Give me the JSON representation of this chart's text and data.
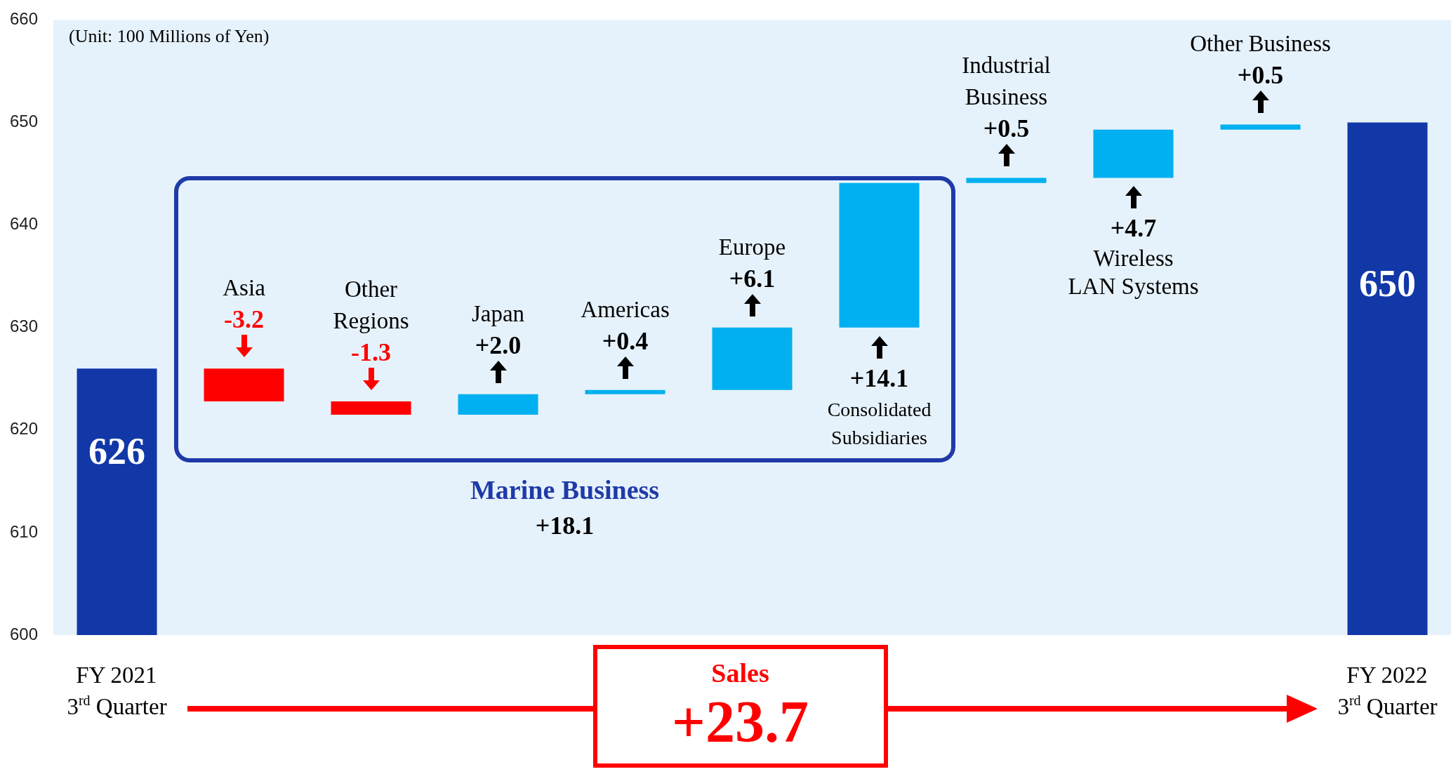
{
  "chart_data": {
    "type": "bar",
    "categories": [
      "FY 2021\n3$^{rd}$ Quarter",
      "Asia",
      "Other\nRegions",
      "Japan",
      "Americas",
      "Europe",
      "Consolidated\nSubsidiaries",
      "Industrial\nBusiness",
      "Wireless\nLAN Systems",
      "Other Business",
      "FY 2022\n3$^{rd}$ Quarter"
    ],
    "values": [
      626,
      -3.2,
      -1.3,
      2.0,
      0.4,
      6.1,
      14.1,
      0.5,
      4.7,
      0.5,
      650
    ],
    "base": [
      null,
      626,
      622.8,
      621.5,
      623.5,
      623.9,
      630,
      644.1,
      644.6,
      649.3,
      null
    ],
    "colors": [
      "#1238a8",
      "#ff0000",
      "#ff0000",
      "#00b0f0",
      "#00b0f0",
      "#00b0f0",
      "#00b0f0",
      "#00b0f0",
      "#00b0f0",
      "#00b0f0",
      "#1238a8"
    ],
    "value_labels": [
      "626",
      "-3.2",
      "-1.3",
      "+2.0",
      "+0.4",
      "+6.1",
      "+14.1",
      "+0.5",
      "+4.7",
      "+0.5",
      "650"
    ],
    "ylim": [
      600,
      660
    ],
    "yticks": [
      600,
      610,
      620,
      630,
      640,
      650,
      660
    ],
    "annotations": [
      "(Unit: 100 Millions of Yen)",
      "Marine Business",
      "+18.1",
      "Sales",
      "+23.7"
    ]
  }
}
